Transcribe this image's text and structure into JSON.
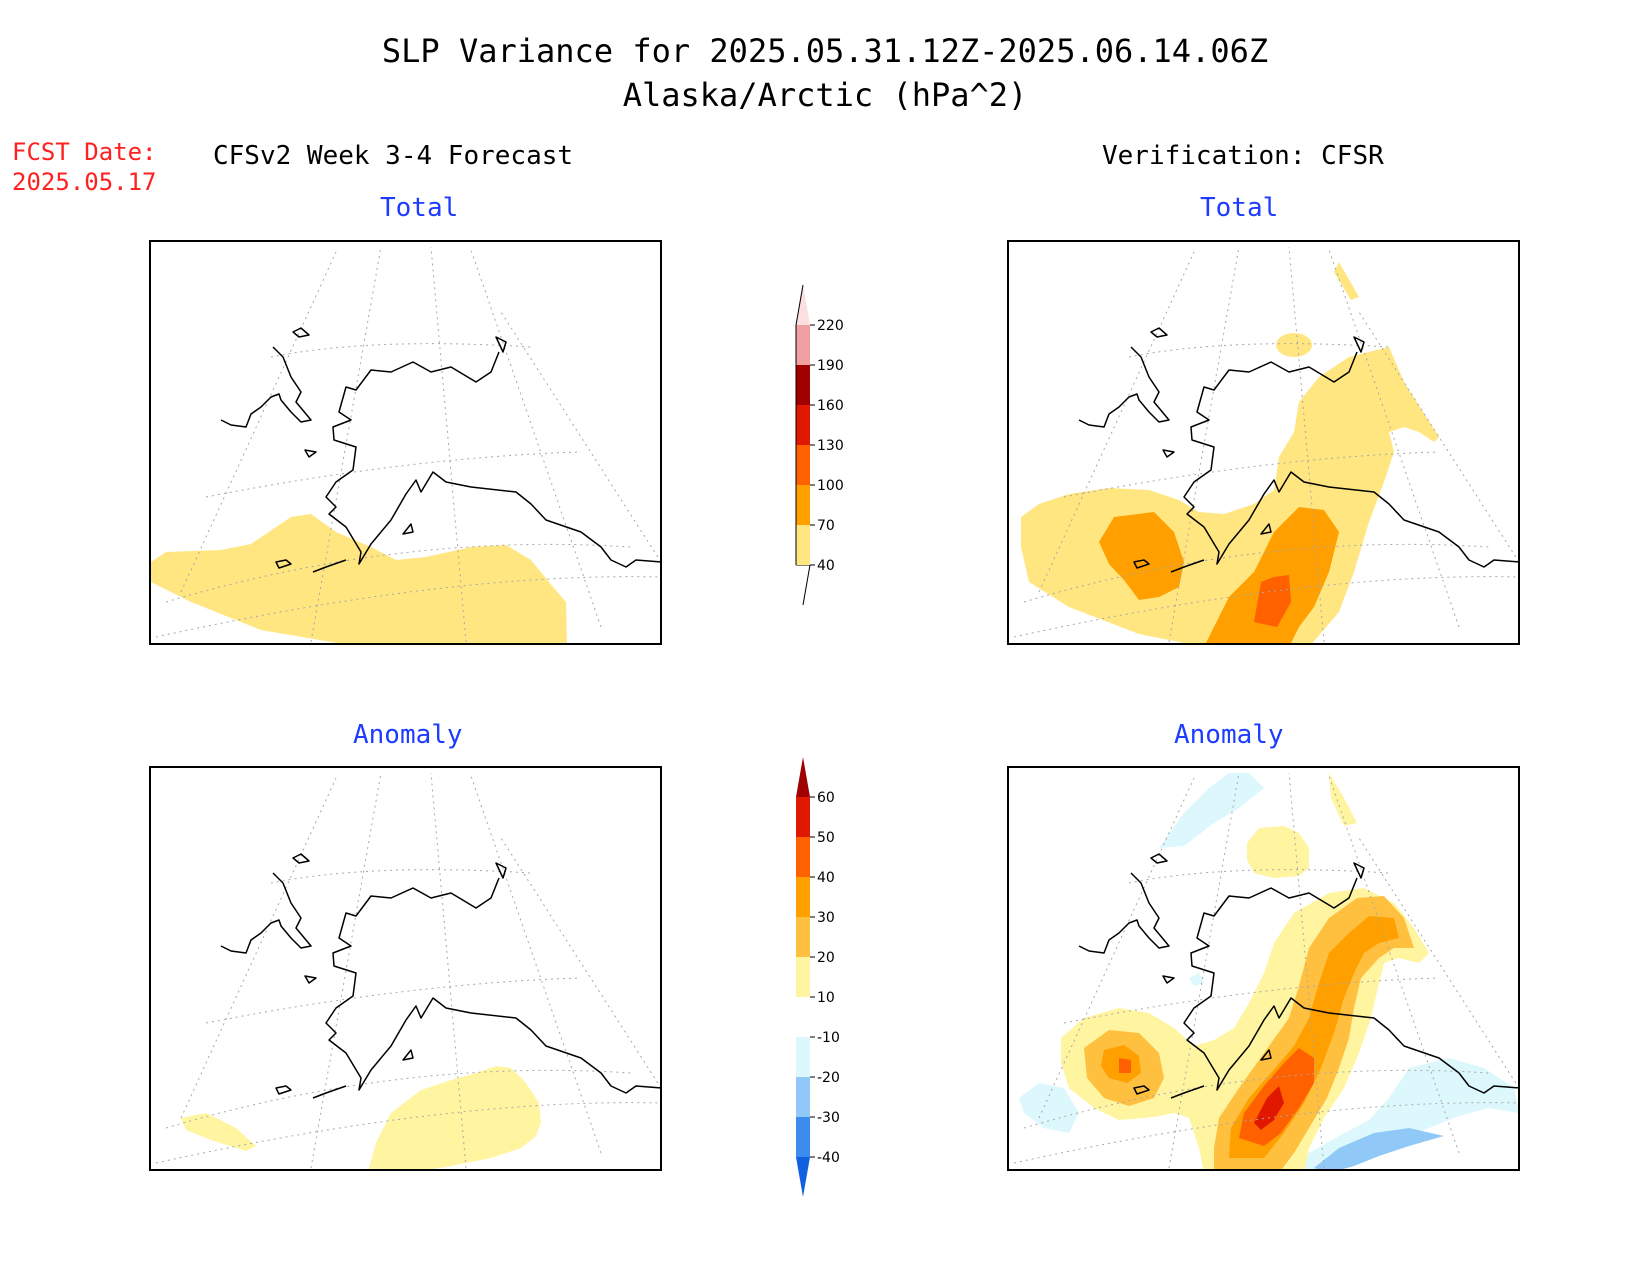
{
  "title": {
    "line1": "SLP Variance for 2025.05.31.12Z-2025.06.14.06Z",
    "line2": "Alaska/Arctic (hPa^2)"
  },
  "fcst": {
    "label": "FCST Date:",
    "date": "2025.05.17"
  },
  "columns": {
    "left": "CFSv2 Week 3-4 Forecast",
    "right": "Verification: CFSR"
  },
  "panels": {
    "forecast_total": "Total",
    "verification_total": "Total",
    "forecast_anomaly": "Anomaly",
    "verification_anomaly": "Anomaly"
  },
  "colorbars": {
    "total": {
      "labels": [
        "40",
        "70",
        "100",
        "130",
        "160",
        "190",
        "220"
      ],
      "colors": [
        "#ffe680",
        "#ffa000",
        "#ff6000",
        "#e01800",
        "#a00000",
        "#f0a0a0",
        "#fce0e0"
      ]
    },
    "anomaly": {
      "labels": [
        "-40",
        "-30",
        "-20",
        "-10",
        "10",
        "20",
        "30",
        "40",
        "50",
        "60"
      ],
      "colors": [
        "#1060e0",
        "#3c8cf0",
        "#90c8f8",
        "#dcf8fc",
        "#ffffff",
        "#fff4a0",
        "#ffc040",
        "#ffa000",
        "#ff6000",
        "#e01800",
        "#a00000"
      ]
    }
  }
}
